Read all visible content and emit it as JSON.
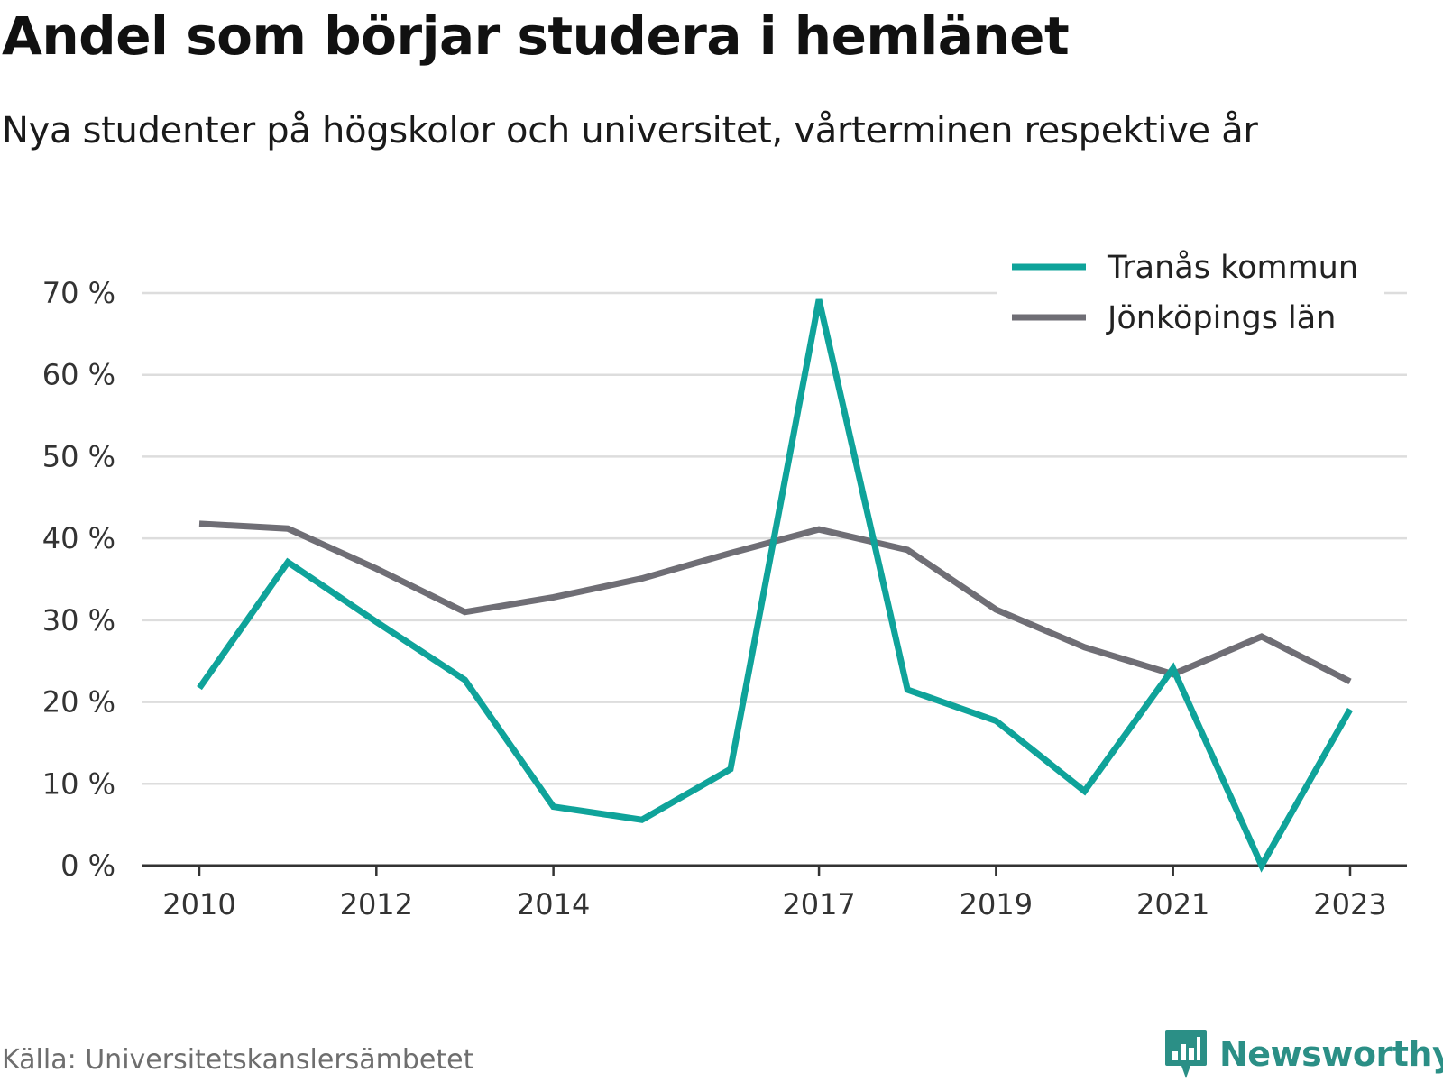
{
  "title": "Andel som börjar studera i hemlänet",
  "subtitle": "Nya studenter på högskolor och universitet, vårterminen respektive år",
  "source": "Källa: Universitetskanslersämbetet",
  "brand": "Newsworthy",
  "colors": {
    "series1": "#0fa39a",
    "series2": "#6f6e75",
    "grid": "#dddddd",
    "axis": "#333333",
    "brand": "#2b8f86"
  },
  "icons": {
    "logo": "newsworthy-bar-chart-logo-icon"
  },
  "chart_data": {
    "type": "line",
    "x": [
      2010,
      2011,
      2012,
      2013,
      2014,
      2015,
      2016,
      2017,
      2018,
      2019,
      2020,
      2021,
      2022,
      2023
    ],
    "x_tick_labels": [
      "2010",
      "2012",
      "2014",
      "2017",
      "2019",
      "2021",
      "2023"
    ],
    "y_tick_labels": [
      "0 %",
      "10 %",
      "20 %",
      "30 %",
      "40 %",
      "50 %",
      "60 %",
      "70 %"
    ],
    "ylim": [
      0,
      70
    ],
    "grid": true,
    "legend_position": "top-right",
    "series": [
      {
        "name": "Tranås kommun",
        "values": [
          21.7,
          37.1,
          29.8,
          22.7,
          7.2,
          5.6,
          11.8,
          69.2,
          21.5,
          17.7,
          9.1,
          24.1,
          0,
          19.1
        ]
      },
      {
        "name": "Jönköpings län",
        "values": [
          41.8,
          41.2,
          36.3,
          31.0,
          32.8,
          35.1,
          38.2,
          41.1,
          38.6,
          31.3,
          26.7,
          23.4,
          28.0,
          22.5
        ]
      }
    ]
  }
}
